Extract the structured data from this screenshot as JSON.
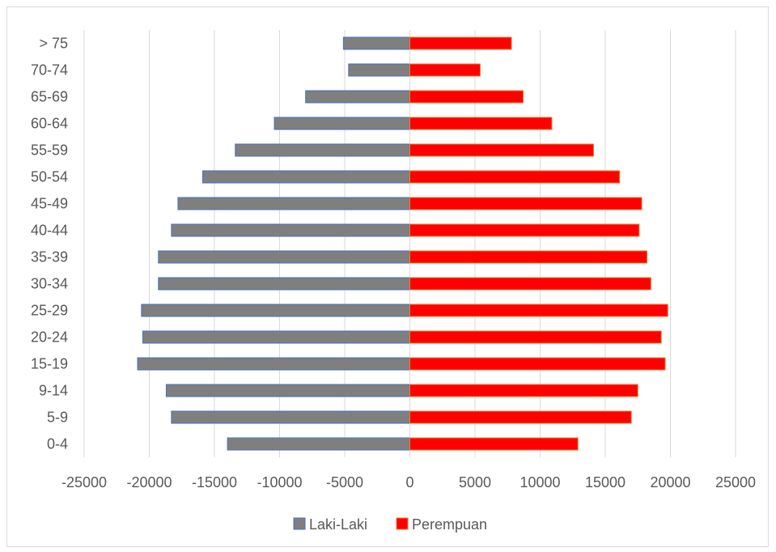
{
  "chart_data": {
    "type": "bar",
    "orientation": "horizontal",
    "title": "",
    "xlabel": "",
    "ylabel": "",
    "xlim": [
      -25000,
      25000
    ],
    "xticks": [
      -25000,
      -20000,
      -15000,
      -10000,
      -5000,
      0,
      5000,
      10000,
      15000,
      20000,
      25000
    ],
    "x_tick_labels": [
      "-25000",
      "-20000",
      "-15000",
      "-10000",
      "-5000",
      "0",
      "5000",
      "10000",
      "15000",
      "20000",
      "25000"
    ],
    "grid": "vertical",
    "legend_position": "bottom",
    "categories": [
      "0-4",
      "5-9",
      "9-14",
      "15-19",
      "20-24",
      "25-29",
      "30-34",
      "35-39",
      "40-44",
      "45-49",
      "50-54",
      "55-59",
      "60-64",
      "65-69",
      "70-74",
      "> 75"
    ],
    "series": [
      {
        "name": "Laki-Laki",
        "color": "#7f7f7f",
        "border": "#4472c4",
        "values": [
          -14000,
          -18300,
          -18700,
          -20900,
          -20500,
          -20600,
          -19300,
          -19300,
          -18300,
          -17800,
          -15900,
          -13400,
          -10400,
          -8000,
          -4700,
          -5100
        ]
      },
      {
        "name": "Perempuan",
        "color": "#ff0000",
        "border": "#ed7d31",
        "values": [
          12900,
          17000,
          17500,
          19600,
          19300,
          19800,
          18500,
          18200,
          17600,
          17800,
          16100,
          14100,
          10900,
          8700,
          5400,
          7800
        ]
      }
    ]
  }
}
